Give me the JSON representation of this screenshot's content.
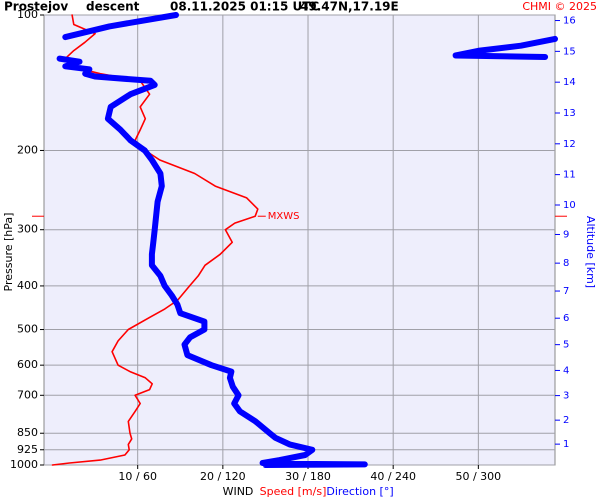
{
  "chart_data": {
    "type": "profile",
    "title": "Prostejov",
    "mode": "descent",
    "time": "08.11.2025 01:15 UTC",
    "position": "49.47N,17.19E",
    "credit": "CHMI © 2025",
    "ylabel": "Pressure [hPa]",
    "y2label": "Altitude [km]",
    "legend_title": "WIND",
    "ylog": true,
    "ylim": [
      1000,
      100
    ],
    "yticks": [
      100,
      200,
      300,
      400,
      500,
      600,
      700,
      850,
      925,
      1000
    ],
    "y2ticks": [
      1,
      2,
      3,
      4,
      5,
      6,
      7,
      8,
      9,
      10,
      11,
      12,
      13,
      14,
      15,
      16
    ],
    "y2color": "#0000ff",
    "xlim": [
      -1,
      59
    ],
    "x2lim": [
      -6,
      354
    ],
    "xticks": [
      {
        "value": 10,
        "label": "10 / 60"
      },
      {
        "value": 20,
        "label": "20 / 120"
      },
      {
        "value": 30,
        "label": "30 / 180"
      },
      {
        "value": 40,
        "label": "40 / 240"
      },
      {
        "value": 50,
        "label": "50 / 300"
      }
    ],
    "grid": true,
    "background": "#eeeefc",
    "series": [
      {
        "name": "Speed [m/s]",
        "color": "#ff0000",
        "width": 1.6,
        "axis": "x",
        "pressure": [
          1000,
          990,
          975,
          950,
          925,
          900,
          875,
          850,
          800,
          760,
          730,
          700,
          680,
          660,
          640,
          620,
          600,
          560,
          530,
          500,
          470,
          450,
          430,
          400,
          380,
          360,
          340,
          320,
          300,
          290,
          280,
          270,
          255,
          240,
          225,
          210,
          200,
          190,
          180,
          170,
          160,
          150,
          140,
          135,
          130,
          125,
          120,
          115,
          110,
          105,
          100
        ],
        "values": [
          0,
          2,
          5.6,
          8.5,
          9,
          8.9,
          9.3,
          9.1,
          8.9,
          9.7,
          10.3,
          9.7,
          11.4,
          11.7,
          10.9,
          9.1,
          7.7,
          7.0,
          7.7,
          8.9,
          11.4,
          13.2,
          14.7,
          16.1,
          17.1,
          17.9,
          19.7,
          21.1,
          20.3,
          21.4,
          23.8,
          24.1,
          22.8,
          19.1,
          16.7,
          12.6,
          10.9,
          9.7,
          10.3,
          10.9,
          10.3,
          11.4,
          10.3,
          5.6,
          2.1,
          1.5,
          2.5,
          3.8,
          5.0,
          2.5,
          2.3
        ]
      },
      {
        "name": "Direction [°]",
        "color": "#0000ff",
        "width": 6,
        "axis": "x2",
        "pressure": [
          1000,
          997,
          993,
          990,
          975,
          950,
          925,
          900,
          870,
          850,
          800,
          760,
          730,
          700,
          670,
          640,
          620,
          600,
          570,
          540,
          520,
          500,
          480,
          460,
          440,
          420,
          400,
          380,
          360,
          340,
          320,
          300,
          280,
          260,
          240,
          225,
          210,
          200,
          190,
          180,
          170,
          160,
          150,
          143,
          140,
          137,
          135,
          132,
          130,
          127,
          125,
          null,
          124,
          123,
          120,
          117,
          113,
          null,
          112,
          106,
          100
        ],
        "values": [
          150,
          220,
          150,
          148,
          160,
          178,
          183,
          167,
          157,
          153,
          143,
          132,
          128,
          131,
          127,
          125,
          126,
          112,
          95,
          93,
          97,
          107,
          107,
          90,
          88,
          84,
          79,
          76,
          70,
          70,
          71,
          72,
          73,
          74,
          77,
          76,
          70,
          65,
          55,
          48,
          39,
          41,
          55,
          72,
          69,
          30,
          23,
          26,
          9,
          19,
          5,
          null,
          347,
          284,
          301,
          330,
          354,
          null,
          9,
          40,
          87
        ]
      }
    ],
    "annotations": [
      {
        "text": "MXWS",
        "pressure": 280,
        "speed": 24.1
      }
    ]
  }
}
